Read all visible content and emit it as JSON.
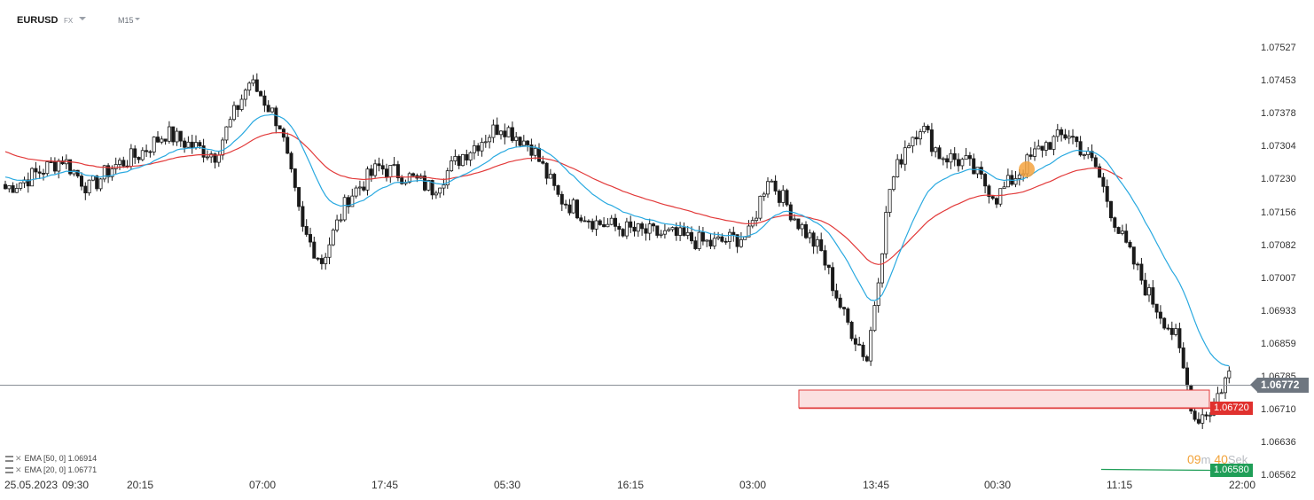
{
  "header": {
    "symbol": "EURUSD",
    "market": "FX",
    "timeframe": "M15"
  },
  "price_axis": [
    "1.07527",
    "1.07453",
    "1.07378",
    "1.07304",
    "1.07230",
    "1.07156",
    "1.07082",
    "1.07007",
    "1.06933",
    "1.06859",
    "1.06785",
    "1.06710",
    "1.06636",
    "1.06562"
  ],
  "time_axis": [
    "25.05.2023",
    "09:30",
    "20:15",
    "07:00",
    "17:45",
    "05:30",
    "16:15",
    "03:00",
    "13:45",
    "00:30",
    "11:15",
    "22:00"
  ],
  "indicators": [
    {
      "label": "EMA [50, 0]",
      "value": "1.06914",
      "color": "#e23a3a"
    },
    {
      "label": "EMA [20, 0]",
      "value": "1.06771",
      "color": "#29a9e0"
    }
  ],
  "current_price": "1.06772",
  "levels": {
    "resistance_zone": "1.06720",
    "low": "1.06580"
  },
  "countdown": {
    "minutes": "09",
    "m_unit": "m",
    "seconds": "40",
    "s_unit": "Sek"
  },
  "colors": {
    "candle": "#1a1a1a",
    "ema50": "#e23a3a",
    "ema20": "#29a9e0",
    "zone_fill": "#fbe0e0",
    "zone_border": "#e03b3b",
    "low_line": "#1f9e57",
    "marker": "#f4a340"
  },
  "chart_data": {
    "type": "candlestick",
    "symbol": "EURUSD",
    "timeframe": "M15",
    "ylim": [
      1.0654,
      1.0758
    ],
    "waypoints_close": [
      [
        0,
        1.072
      ],
      [
        5,
        1.0722
      ],
      [
        15,
        1.0727
      ],
      [
        22,
        1.072
      ],
      [
        28,
        1.0725
      ],
      [
        35,
        1.0728
      ],
      [
        42,
        1.0733
      ],
      [
        49,
        1.073
      ],
      [
        55,
        1.0728
      ],
      [
        64,
        1.0745
      ],
      [
        67,
        1.0742
      ],
      [
        72,
        1.0735
      ],
      [
        78,
        1.071
      ],
      [
        83,
        1.0703
      ],
      [
        90,
        1.0718
      ],
      [
        98,
        1.0725
      ],
      [
        105,
        1.0723
      ],
      [
        112,
        1.072
      ],
      [
        120,
        1.0728
      ],
      [
        130,
        1.0735
      ],
      [
        138,
        1.073
      ],
      [
        145,
        1.0718
      ],
      [
        155,
        1.0712
      ],
      [
        165,
        1.071
      ],
      [
        175,
        1.0709
      ],
      [
        185,
        1.0707
      ],
      [
        195,
        1.0709
      ],
      [
        200,
        1.0723
      ],
      [
        208,
        1.0712
      ],
      [
        214,
        1.0705
      ],
      [
        220,
        1.069
      ],
      [
        226,
        1.068
      ],
      [
        232,
        1.072
      ],
      [
        236,
        1.073
      ],
      [
        240,
        1.0735
      ],
      [
        245,
        1.0728
      ],
      [
        252,
        1.0726
      ],
      [
        260,
        1.0718
      ],
      [
        267,
        1.0725
      ],
      [
        272,
        1.073
      ],
      [
        279,
        1.0733
      ],
      [
        286,
        1.0725
      ],
      [
        292,
        1.071
      ],
      [
        300,
        1.0695
      ],
      [
        307,
        1.0685
      ],
      [
        312,
        1.0666
      ],
      [
        316,
        1.0668
      ],
      [
        321,
        1.0677
      ]
    ],
    "series": [
      {
        "name": "EMA [50, 0]",
        "last": 1.06914
      },
      {
        "name": "EMA [20, 0]",
        "last": 1.06771
      }
    ],
    "current_price": 1.06772,
    "zone": [
      1.0671,
      1.0674
    ],
    "low": 1.0658
  }
}
